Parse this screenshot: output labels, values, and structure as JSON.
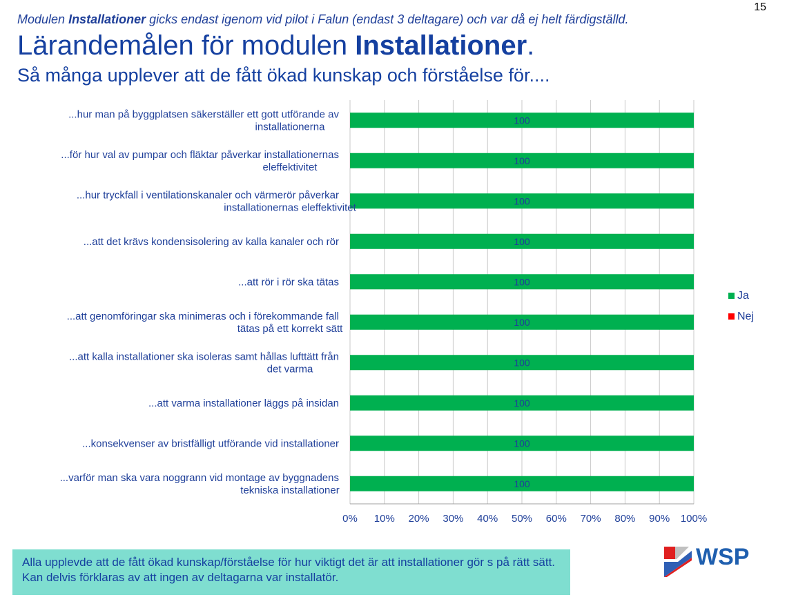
{
  "page_number": "15",
  "intro": {
    "prefix": "Modulen ",
    "bold": "Installationer",
    "suffix": " gicks endast igenom vid pilot i Falun (endast 3 deltagare) och var då ej helt färdigställd."
  },
  "title": {
    "prefix": "Lärandemålen för modulen ",
    "bold": "Installationer",
    "suffix": "."
  },
  "subtitle": "Så många upplever att de fått ökad kunskap och förståelse för....",
  "chart_data": {
    "type": "bar",
    "orientation": "horizontal",
    "stacked": true,
    "categories": [
      [
        "...hur man på byggplatsen säkerställer ett gott utförande av",
        "installationerna"
      ],
      [
        "...för hur val av pumpar och fläktar påverkar installationernas",
        "eleffektivitet"
      ],
      [
        "...hur tryckfall i ventilationskanaler och värmerör påverkar",
        "installationernas eleffektivitet"
      ],
      [
        "...att det krävs kondensisolering av kalla kanaler och rör"
      ],
      [
        "...att rör i rör ska tätas"
      ],
      [
        "...att genomföringar ska minimeras och i förekommande fall",
        "tätas på ett korrekt sätt"
      ],
      [
        "...att kalla installationer ska isoleras samt hållas lufttätt från",
        "det varma"
      ],
      [
        "...att varma installationer läggs på insidan"
      ],
      [
        "...konsekvenser av bristfälligt utförande vid installationer"
      ],
      [
        "...varför man ska vara noggrann vid montage av byggnadens",
        "tekniska installationer"
      ]
    ],
    "series": [
      {
        "name": "Ja",
        "color": "#00b050",
        "values": [
          100,
          100,
          100,
          100,
          100,
          100,
          100,
          100,
          100,
          100
        ]
      },
      {
        "name": "Nej",
        "color": "#ff0000",
        "values": [
          0,
          0,
          0,
          0,
          0,
          0,
          0,
          0,
          0,
          0
        ]
      }
    ],
    "data_labels": [
      "100",
      "100",
      "100",
      "100",
      "100",
      "100",
      "100",
      "100",
      "100",
      "100"
    ],
    "x_ticks": [
      "0%",
      "10%",
      "20%",
      "30%",
      "40%",
      "50%",
      "60%",
      "70%",
      "80%",
      "90%",
      "100%"
    ],
    "xlim": [
      0,
      100
    ],
    "grid": true,
    "legend_position": "right"
  },
  "note": "Alla upplevde att de fått ökad kunskap/förståelse för hur viktigt det är att installationer gör s på rätt sätt. Kan delvis förklaras av att ingen av deltagarna var installatör.",
  "logo": {
    "text": "WSP",
    "colors": {
      "text": "#1f5faf",
      "red": "#e02020",
      "blue": "#2f5fb5"
    }
  }
}
